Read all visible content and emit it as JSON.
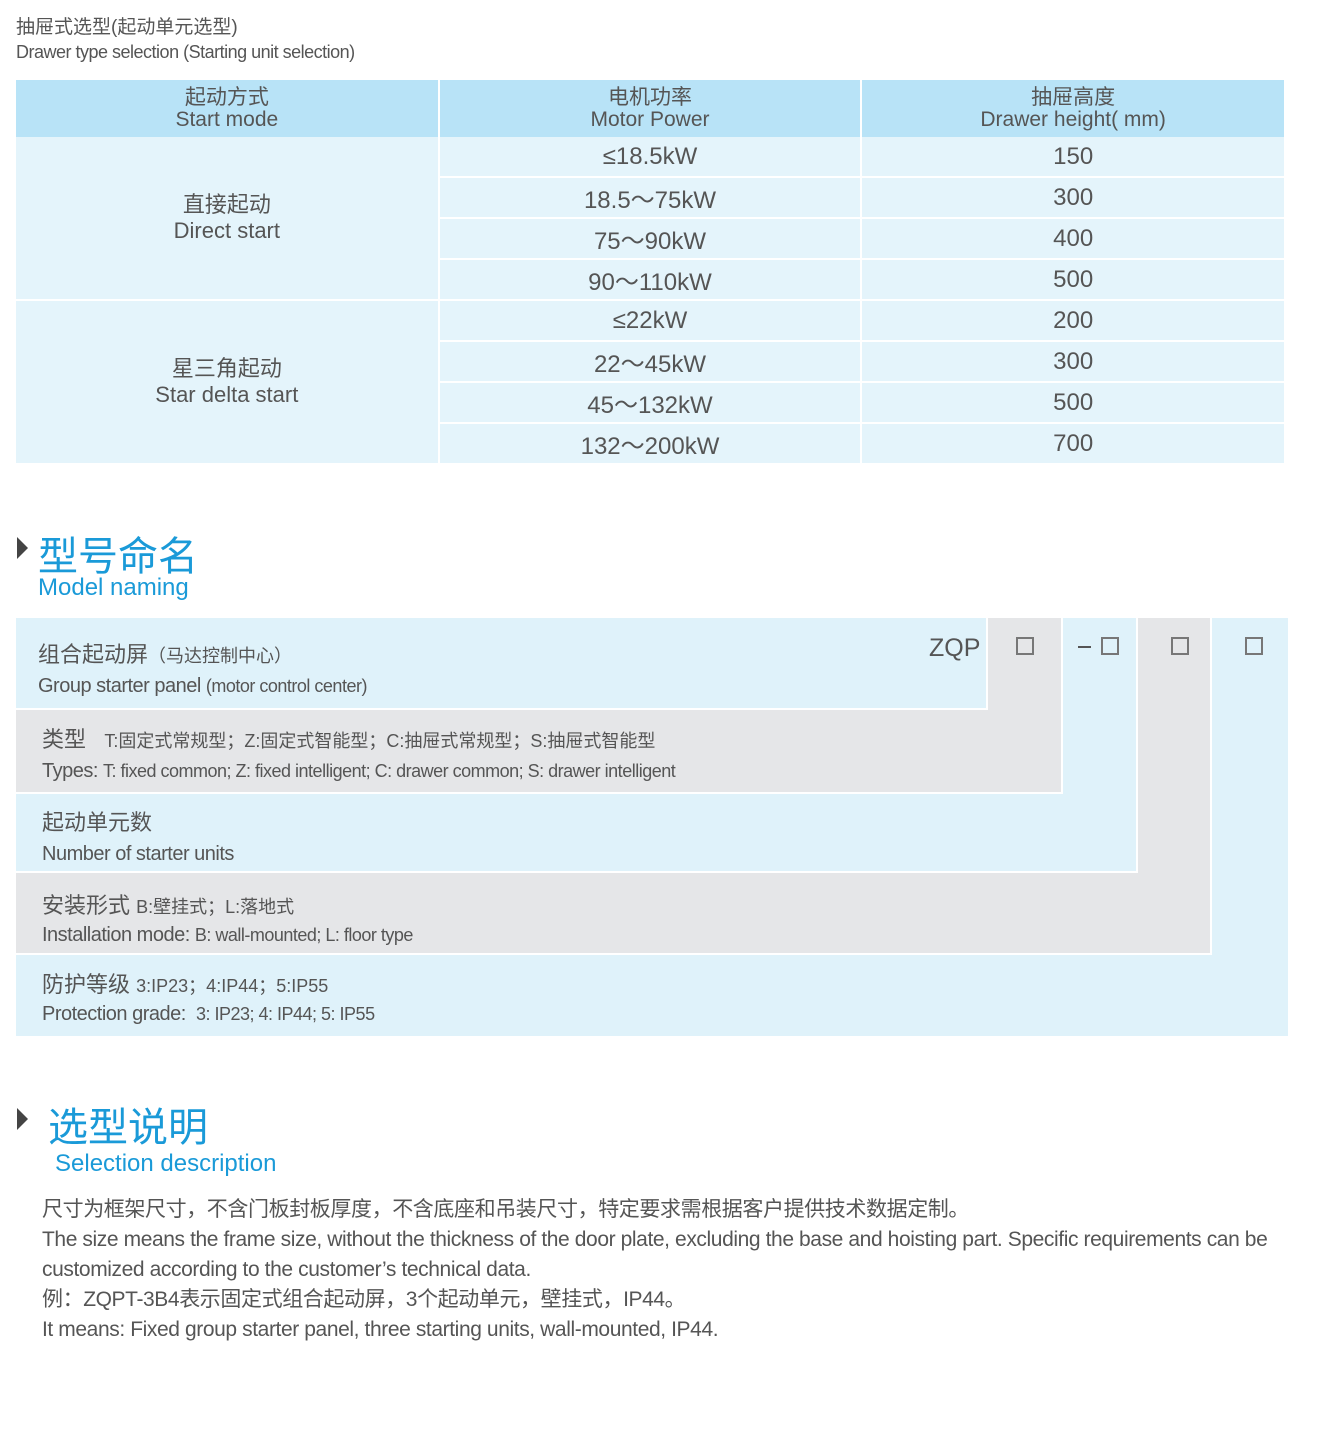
{
  "header": {
    "title_cn": "抽屉式选型(起动单元选型)",
    "title_en": "Drawer type selection (Starting unit selection)"
  },
  "table": {
    "columns": [
      {
        "cn": "起动方式",
        "en": "Start mode"
      },
      {
        "cn": "电机功率",
        "en": "Motor Power"
      },
      {
        "cn": "抽屉高度",
        "en": "Drawer height( mm)"
      }
    ],
    "groups": [
      {
        "cn": "直接起动",
        "en": "Direct start",
        "rows": [
          [
            "≤18.5kW",
            "150"
          ],
          [
            "18.5～75kW",
            "300"
          ],
          [
            "75～90kW",
            "400"
          ],
          [
            "90～110kW",
            "500"
          ]
        ]
      },
      {
        "cn": "星三角起动",
        "en": "Star delta start",
        "rows": [
          [
            "≤22kW",
            "200"
          ],
          [
            "22～45kW",
            "300"
          ],
          [
            "45～132kW",
            "500"
          ],
          [
            "132～200kW",
            "700"
          ]
        ]
      }
    ]
  },
  "model": {
    "title_cn": "型号命名",
    "title_en": "Model naming",
    "code": "ZQP",
    "dash": "–",
    "rows": [
      {
        "cn": "组合起动屏",
        "cn_note": "（马达控制中心）",
        "en": "Group starter panel",
        "en_note": "(motor control center)"
      },
      {
        "cn": "类型",
        "cn_note": "T:固定式常规型；Z:固定式智能型；C:抽屉式常规型；S:抽屉式智能型",
        "en": "Types:",
        "en_note": "T: fixed common; Z: fixed intelligent; C: drawer common; S: drawer intelligent"
      },
      {
        "cn": "起动单元数",
        "cn_note": "",
        "en": "Number of starter units",
        "en_note": ""
      },
      {
        "cn": "安装形式",
        "cn_note": "B:壁挂式；L:落地式",
        "en": "Installation mode:",
        "en_note": "B: wall-mounted; L: floor type"
      },
      {
        "cn": "防护等级",
        "cn_note": "3:IP23；4:IP44；5:IP55",
        "en": "Protection grade:",
        "en_note": "3: IP23; 4: IP44; 5: IP55"
      }
    ]
  },
  "selection": {
    "title_cn": "选型说明",
    "title_en": "Selection description",
    "lines": [
      "尺寸为框架尺寸，不含门板封板厚度，不含底座和吊装尺寸，特定要求需根据客户提供技术数据定制。",
      "The size means the frame size, without the thickness of the door plate, excluding the base and hoisting part. Specific requirements can be customized according to the customer’s technical data.",
      "例：ZQPT-3B4表示固定式组合起动屏，3个起动单元，壁挂式，IP44。",
      "It means: Fixed group starter panel, three starting units, wall-mounted, IP44."
    ]
  },
  "colors": {
    "accent": "#1a9ad8",
    "table_header": "#b8e3f7",
    "table_body": "#e4f4fb",
    "grey": "#e5e6e8"
  }
}
